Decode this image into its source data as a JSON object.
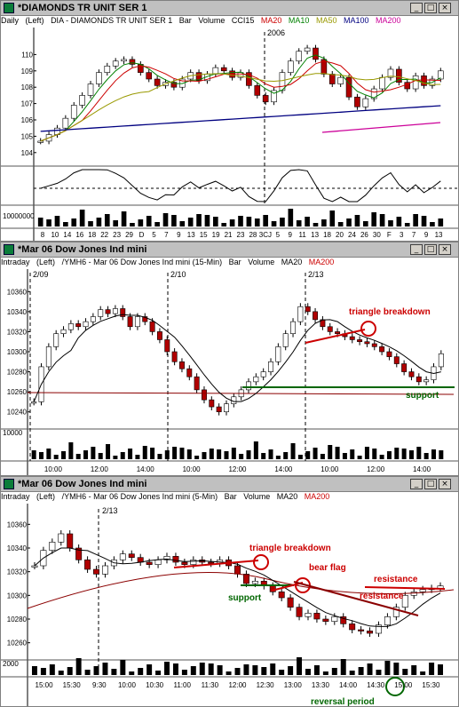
{
  "colors": {
    "ma20": "#000000",
    "ma10": "#008000",
    "ma50": "#999900",
    "ma100": "#000080",
    "ma200": "#cc0099",
    "annot": "#cc0000",
    "support": "#006600"
  },
  "panels": [
    {
      "title": "*DIAMONDS TR UNIT SER 1",
      "info": {
        "period": "Daily",
        "axis": "(Left)",
        "desc": "DIA - DIAMONDS TR UNIT SER 1",
        "type": "Bar",
        "volume": "Volume",
        "cci": "CCI15",
        "ma20": "MA20",
        "ma10": "MA10",
        "ma50": "MA50",
        "ma100": "MA100",
        "ma200": "MA200"
      },
      "top_label": "2006",
      "y_ticks": [
        "110",
        "109",
        "108",
        "107",
        "106",
        "105",
        "104"
      ],
      "vol_label": "10000000",
      "x_ticks": [
        "8",
        "10",
        "14",
        "16",
        "18",
        "22",
        "23",
        "29",
        "D",
        "5",
        "7",
        "9",
        "13",
        "15",
        "19",
        "21",
        "23",
        "28",
        "3CJ",
        "5",
        "9",
        "11",
        "13",
        "18",
        "20",
        "24",
        "26",
        "30",
        "F",
        "3",
        "7",
        "9",
        "13"
      ]
    },
    {
      "title": "*Mar 06  Dow Jones Ind mini",
      "info": {
        "period": "Intraday",
        "axis": "(Left)",
        "desc": "/YMH6 - Mar 06  Dow Jones Ind mini (15-Min)",
        "type": "Bar",
        "volume": "Volume",
        "ma20": "MA20",
        "ma200": "MA200"
      },
      "dates": [
        "2/09",
        "2/10",
        "2/13"
      ],
      "y_ticks": [
        "10360",
        "10340",
        "10320",
        "10300",
        "10280",
        "10260",
        "10240"
      ],
      "vol_label": "10000",
      "x_ticks": [
        "10:00",
        "12:00",
        "14:00",
        "10:00",
        "12:00",
        "14:00",
        "10:00",
        "12:00",
        "14:00"
      ],
      "annotations": {
        "triangle": "triangle breakdown",
        "support": "support"
      }
    },
    {
      "title": "*Mar 06  Dow Jones Ind mini",
      "info": {
        "period": "Intraday",
        "axis": "(Left)",
        "desc": "/YMH6 - Mar 06  Dow Jones Ind mini (5-Min)",
        "type": "Bar",
        "volume": "Volume",
        "ma20": "MA20",
        "ma200": "MA200"
      },
      "dates": [
        "2/13"
      ],
      "y_ticks": [
        "10360",
        "10340",
        "10320",
        "10300",
        "10280",
        "10260"
      ],
      "vol_label": "2000",
      "x_ticks": [
        "15:00",
        "15:30",
        "9:30",
        "10:00",
        "10:30",
        "11:00",
        "11:30",
        "12:00",
        "12:30",
        "13:00",
        "13:30",
        "14:00",
        "14:30",
        "15:00",
        "15:30"
      ],
      "annotations": {
        "triangle": "triangle breakdown",
        "bearflag": "bear flag",
        "resistance1": "resistance",
        "resistance2": "resistance",
        "support": "support",
        "reversal": "reversal period"
      }
    }
  ],
  "chart_data": [
    {
      "type": "bar",
      "title": "DIA - DIAMONDS TR UNIT SER 1",
      "ylim": [
        103.5,
        111
      ],
      "close": [
        104.7,
        105.1,
        105.5,
        106.1,
        106.9,
        107.5,
        108.2,
        108.9,
        109.3,
        109.6,
        109.7,
        109.4,
        108.9,
        108.5,
        108.1,
        108.3,
        108.0,
        108.5,
        108.9,
        108.4,
        108.8,
        109.2,
        109.0,
        108.6,
        108.9,
        108.1,
        107.5,
        107.1,
        107.8,
        108.9,
        109.6,
        110.2,
        110.4,
        109.7,
        108.8,
        108.2,
        108.6,
        107.4,
        106.8,
        107.3,
        107.9,
        108.6,
        109.1,
        108.3,
        107.9,
        108.7,
        108.1,
        108.5,
        109.0
      ]
    },
    {
      "type": "bar",
      "title": "/YMH6 - Mar 06  Dow Jones Ind mini (15-Min)",
      "ylim": [
        10230,
        10370
      ],
      "close": [
        10250,
        10285,
        10305,
        10318,
        10322,
        10328,
        10325,
        10330,
        10335,
        10342,
        10338,
        10343,
        10335,
        10325,
        10335,
        10330,
        10320,
        10312,
        10300,
        10290,
        10283,
        10275,
        10262,
        10252,
        10245,
        10240,
        10248,
        10255,
        10262,
        10270,
        10275,
        10280,
        10290,
        10305,
        10318,
        10330,
        10345,
        10340,
        10332,
        10325,
        10320,
        10318,
        10315,
        10312,
        10310,
        10308,
        10305,
        10300,
        10295,
        10288,
        10280,
        10275,
        10270,
        10272,
        10285,
        10298
      ],
      "support_level": 10265
    },
    {
      "type": "bar",
      "title": "/YMH6 - Mar 06  Dow Jones Ind mini (5-Min)",
      "ylim": [
        10250,
        10370
      ],
      "close": [
        10325,
        10338,
        10345,
        10352,
        10340,
        10330,
        10322,
        10318,
        10325,
        10330,
        10335,
        10332,
        10328,
        10326,
        10330,
        10333,
        10328,
        10326,
        10330,
        10328,
        10327,
        10330,
        10325,
        10318,
        10310,
        10312,
        10308,
        10303,
        10298,
        10290,
        10282,
        10285,
        10280,
        10278,
        10282,
        10276,
        10271,
        10270,
        10268,
        10275,
        10282,
        10290,
        10300,
        10303,
        10305,
        10306,
        10308
      ],
      "support_level": 10306
    }
  ]
}
